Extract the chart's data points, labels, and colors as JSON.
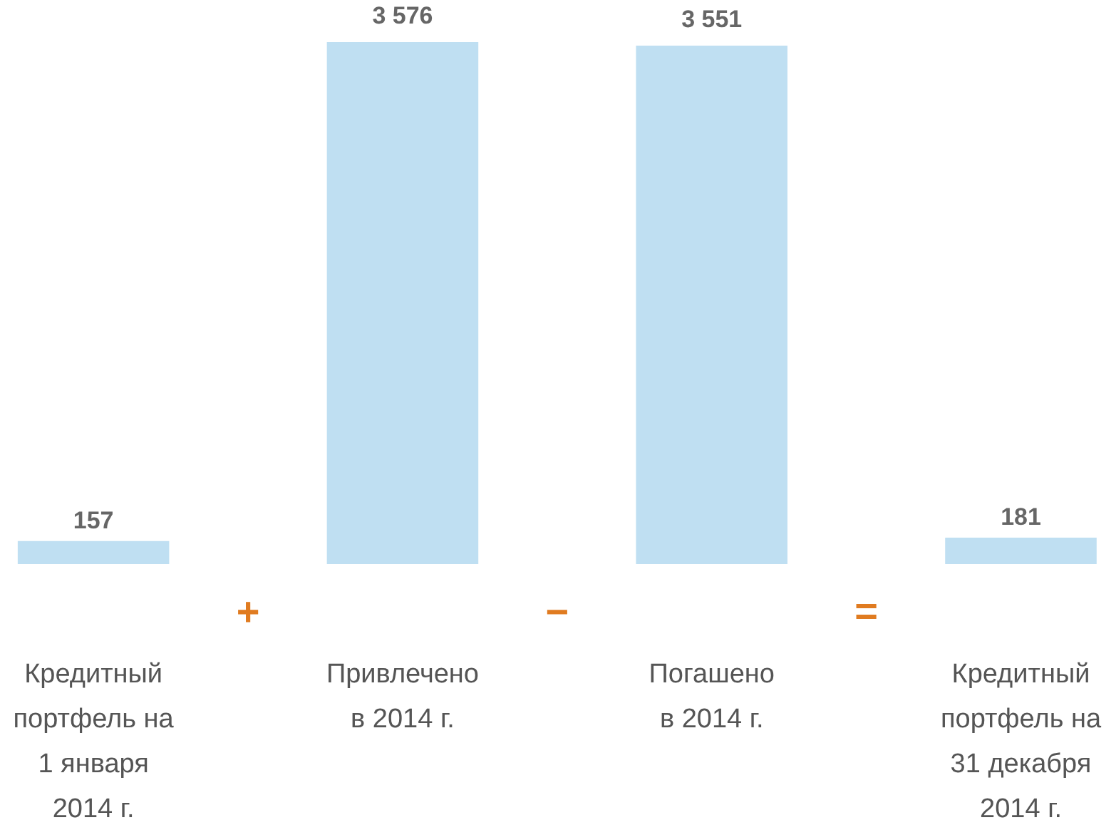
{
  "chart_data": {
    "type": "bar",
    "categories": [
      "Кредитный\nпортфель на\n1 января\n2014 г.",
      "Привлечено\nв 2014 г.",
      "Погашено\nв 2014 г.",
      "Кредитный\nпортфель на\n31 декабря\n2014 г."
    ],
    "values": [
      157,
      3576,
      3551,
      181
    ],
    "color": "#bfdff2",
    "value_labels": [
      "157",
      "3 576",
      "3 551",
      "181"
    ],
    "annotations": [
      "+",
      "−",
      "="
    ]
  }
}
